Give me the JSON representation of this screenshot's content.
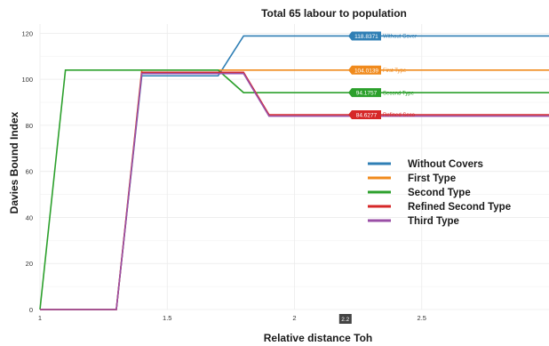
{
  "chart_data": {
    "type": "line",
    "title": "Total 65 labour to population",
    "xlabel": "Relative distance Toh",
    "ylabel": "Davies Bound Index",
    "xlim": [
      1,
      3
    ],
    "ylim": [
      0,
      124
    ],
    "x_ticks": [
      "1",
      "1.5",
      "2",
      "2.5"
    ],
    "x_tick_values": [
      1,
      1.5,
      2,
      2.5
    ],
    "y_ticks": [
      "0",
      "20",
      "40",
      "60",
      "80",
      "100",
      "120"
    ],
    "y_tick_values": [
      0,
      20,
      40,
      60,
      80,
      100,
      120
    ],
    "grid": true,
    "legend_position": "right-middle",
    "hover_x_label": "2.2",
    "series": [
      {
        "name": "Without Covers",
        "tag_name": "Without Cover",
        "tag_value": "118.8371",
        "color": "#2f7fb5",
        "x": [
          1,
          1.3,
          1.4,
          1.7,
          1.8,
          3
        ],
        "y": [
          0,
          0,
          101.5,
          101.5,
          118.8,
          118.8
        ]
      },
      {
        "name": "First Type",
        "tag_name": "First Type",
        "tag_value": "104.0139",
        "color": "#f08a1c",
        "x": [
          1,
          1.3,
          1.4,
          1.8,
          3
        ],
        "y": [
          0,
          0,
          104,
          104,
          104
        ]
      },
      {
        "name": "Second Type",
        "tag_name": "Second Type",
        "tag_value": "94.1757",
        "color": "#2ca02c",
        "x": [
          1,
          1.1,
          1.7,
          1.8,
          3
        ],
        "y": [
          0,
          104,
          104,
          94.2,
          94.2
        ]
      },
      {
        "name": "Refined Second Type",
        "tag_name": "Refined Seco",
        "tag_value": "84.6277",
        "color": "#d62728",
        "x": [
          1,
          1.3,
          1.4,
          1.8,
          1.9,
          3
        ],
        "y": [
          0,
          0,
          103,
          103,
          84.6,
          84.6
        ]
      },
      {
        "name": "Third Type",
        "tag_name": "",
        "tag_value": "",
        "color": "#9a4fa6",
        "x": [
          1,
          1.3,
          1.4,
          1.8,
          1.9,
          3
        ],
        "y": [
          0,
          0,
          102.5,
          102.5,
          84,
          84
        ]
      }
    ]
  }
}
